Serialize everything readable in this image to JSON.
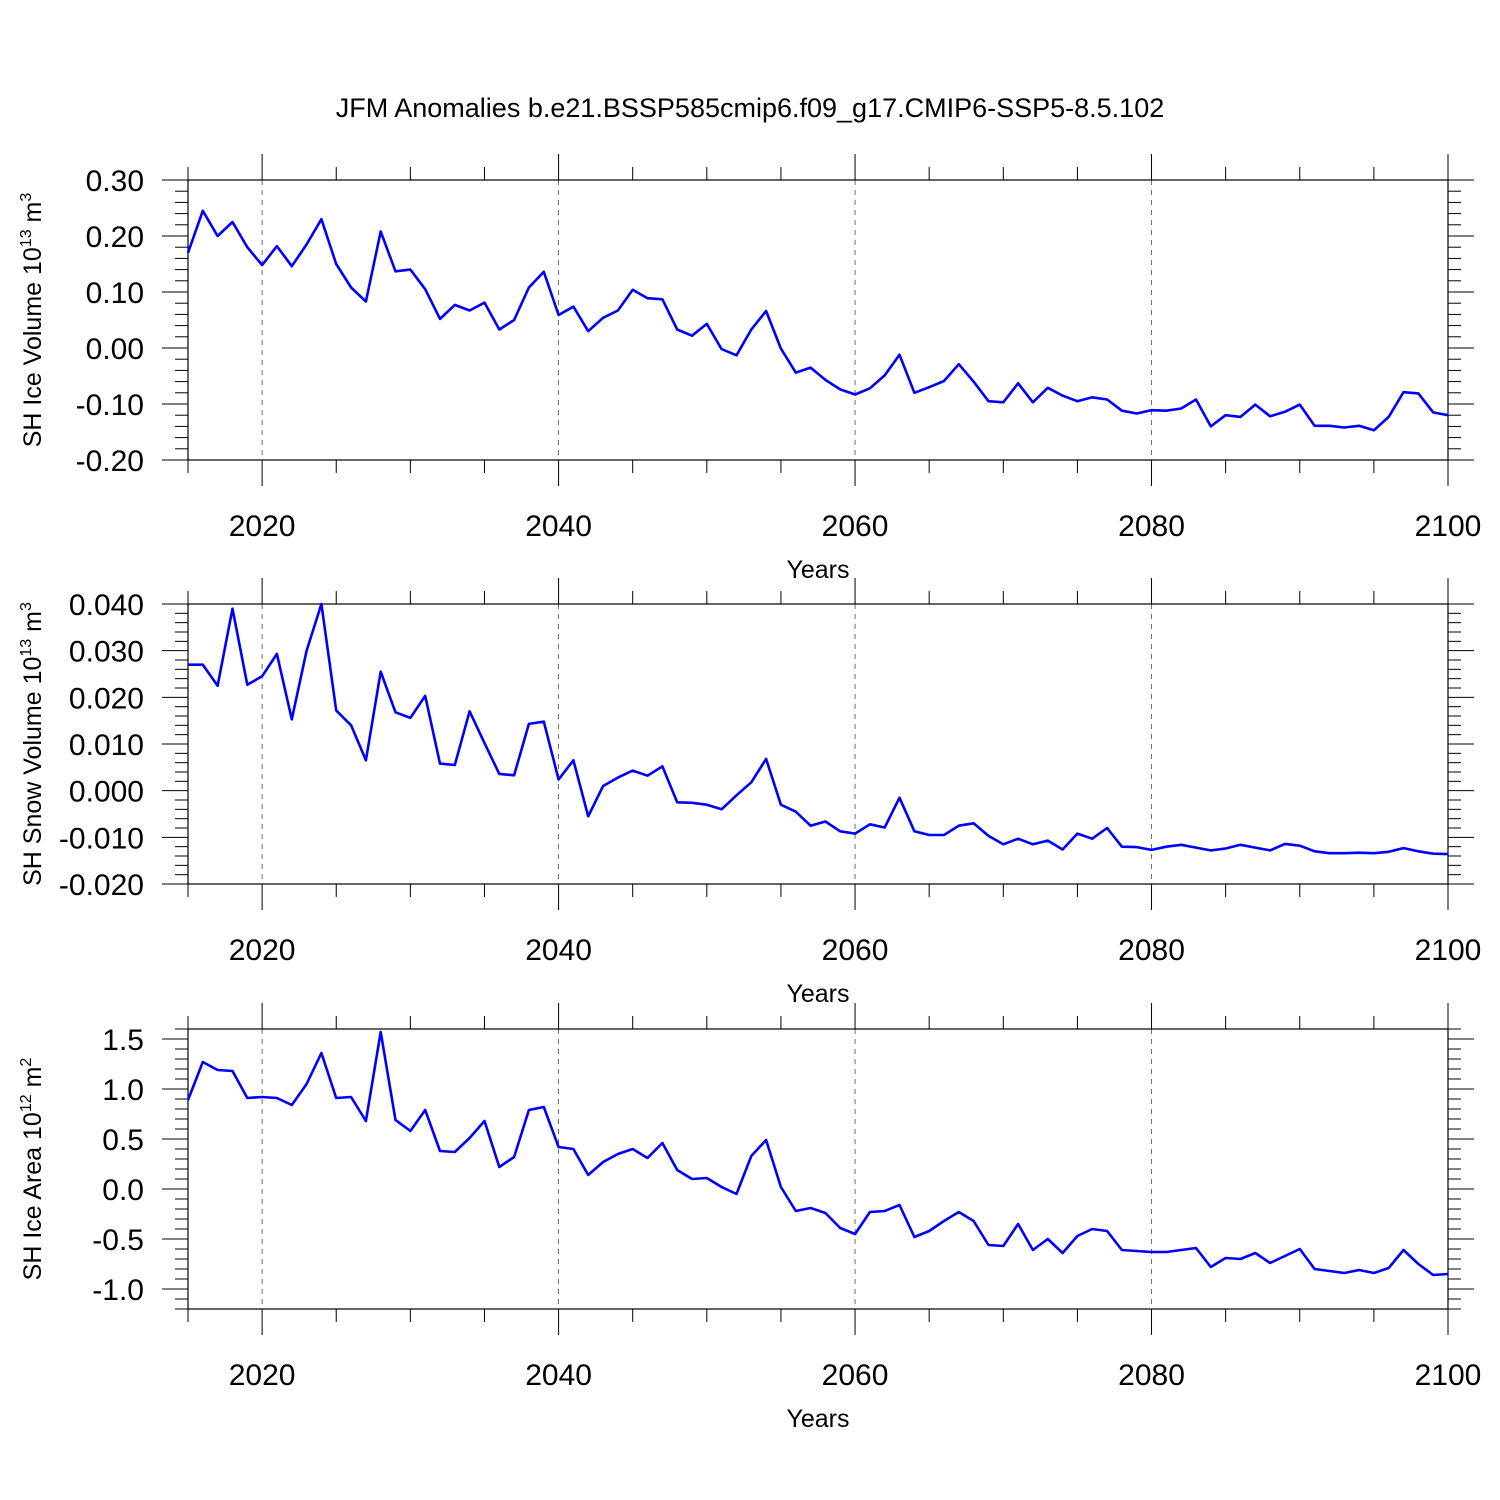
{
  "figure": {
    "title": "JFM Anomalies b.e21.BSSP585cmip6.f09_g17.CMIP6-SSP5-8.5.102"
  },
  "chart_data": [
    {
      "type": "line",
      "title": "",
      "xlabel": "Years",
      "ylabel": "SH Ice Volume 10^13 m^3",
      "ylabel_parts": {
        "base": "SH Ice Volume 10",
        "exp": "13",
        "unit": " m",
        "unit_exp": "3"
      },
      "xlim": [
        2015,
        2100
      ],
      "ylim": [
        -0.2,
        0.3
      ],
      "xticks": [
        2020,
        2040,
        2060,
        2080,
        2100
      ],
      "yticks": [
        -0.2,
        -0.1,
        0.0,
        0.1,
        0.2,
        0.3
      ],
      "ytick_labels": [
        "-0.20",
        "-0.10",
        "0.00",
        "0.10",
        "0.20",
        "0.30"
      ],
      "grid": "dashed vertical at major x ticks",
      "line_color": "#0000ff",
      "x_start": 2015,
      "values": [
        0.17,
        0.245,
        0.2,
        0.225,
        0.18,
        0.148,
        0.182,
        0.146,
        0.185,
        0.23,
        0.15,
        0.108,
        0.083,
        0.208,
        0.137,
        0.14,
        0.105,
        0.052,
        0.077,
        0.067,
        0.081,
        0.033,
        0.05,
        0.108,
        0.136,
        0.059,
        0.074,
        0.03,
        0.054,
        0.067,
        0.104,
        0.089,
        0.087,
        0.033,
        0.022,
        0.043,
        -0.002,
        -0.013,
        0.033,
        0.066,
        -0.001,
        -0.044,
        -0.035,
        -0.057,
        -0.074,
        -0.083,
        -0.072,
        -0.049,
        -0.012,
        -0.08,
        -0.07,
        -0.059,
        -0.029,
        -0.06,
        -0.095,
        -0.097,
        -0.063,
        -0.097,
        -0.071,
        -0.085,
        -0.095,
        -0.088,
        -0.092,
        -0.112,
        -0.117,
        -0.111,
        -0.112,
        -0.108,
        -0.092,
        -0.14,
        -0.12,
        -0.123,
        -0.101,
        -0.122,
        -0.114,
        -0.101,
        -0.139,
        -0.139,
        -0.142,
        -0.139,
        -0.147,
        -0.123,
        -0.079,
        -0.081,
        -0.115,
        -0.12
      ]
    },
    {
      "type": "line",
      "title": "",
      "xlabel": "Years",
      "ylabel": "SH Snow Volume 10^13 m^3",
      "ylabel_parts": {
        "base": "SH Snow Volume 10",
        "exp": "13",
        "unit": " m",
        "unit_exp": "3"
      },
      "xlim": [
        2015,
        2100
      ],
      "ylim": [
        -0.02,
        0.04
      ],
      "xticks": [
        2020,
        2040,
        2060,
        2080,
        2100
      ],
      "yticks": [
        -0.02,
        -0.01,
        0.0,
        0.01,
        0.02,
        0.03,
        0.04
      ],
      "ytick_labels": [
        "-0.020",
        "-0.010",
        "0.000",
        "0.010",
        "0.020",
        "0.030",
        "0.040"
      ],
      "grid": "dashed vertical at major x ticks",
      "line_color": "#0000ff",
      "x_start": 2015,
      "values": [
        0.027,
        0.027,
        0.0225,
        0.039,
        0.0227,
        0.0245,
        0.0293,
        0.0153,
        0.03,
        0.04,
        0.0172,
        0.014,
        0.0065,
        0.0255,
        0.0168,
        0.0156,
        0.0203,
        0.0058,
        0.0055,
        0.017,
        0.0102,
        0.0036,
        0.0033,
        0.0143,
        0.0148,
        0.0024,
        0.0065,
        -0.0055,
        0.001,
        0.0028,
        0.0043,
        0.0032,
        0.0052,
        -0.0025,
        -0.0026,
        -0.003,
        -0.004,
        -0.001,
        0.0018,
        0.0068,
        -0.003,
        -0.0045,
        -0.0075,
        -0.0066,
        -0.0087,
        -0.0092,
        -0.0072,
        -0.0079,
        -0.0015,
        -0.0087,
        -0.0095,
        -0.0095,
        -0.0075,
        -0.007,
        -0.0097,
        -0.0115,
        -0.0103,
        -0.0115,
        -0.0107,
        -0.0126,
        -0.0092,
        -0.0103,
        -0.008,
        -0.012,
        -0.0121,
        -0.0127,
        -0.012,
        -0.0116,
        -0.0122,
        -0.0128,
        -0.0124,
        -0.0116,
        -0.0122,
        -0.0128,
        -0.0114,
        -0.0118,
        -0.013,
        -0.0134,
        -0.0134,
        -0.0133,
        -0.0134,
        -0.0131,
        -0.0123,
        -0.013,
        -0.0135,
        -0.0136
      ]
    },
    {
      "type": "line",
      "title": "",
      "xlabel": "Years",
      "ylabel": "SH Ice Area 10^12 m^2",
      "ylabel_parts": {
        "base": "SH Ice Area 10",
        "exp": "12",
        "unit": " m",
        "unit_exp": "2"
      },
      "xlim": [
        2015,
        2100
      ],
      "ylim": [
        -1.2,
        1.6
      ],
      "xticks": [
        2020,
        2040,
        2060,
        2080,
        2100
      ],
      "yticks": [
        -1.0,
        -0.5,
        0.0,
        0.5,
        1.0,
        1.5
      ],
      "ytick_labels": [
        "-1.0",
        "-0.5",
        "0.0",
        "0.5",
        "1.0",
        "1.5"
      ],
      "grid": "dashed vertical at major x ticks",
      "line_color": "#0000ff",
      "x_start": 2015,
      "values": [
        0.89,
        1.27,
        1.19,
        1.18,
        0.91,
        0.92,
        0.91,
        0.84,
        1.05,
        1.36,
        0.91,
        0.92,
        0.68,
        1.57,
        0.69,
        0.58,
        0.79,
        0.38,
        0.37,
        0.51,
        0.68,
        0.22,
        0.32,
        0.79,
        0.82,
        0.42,
        0.4,
        0.14,
        0.27,
        0.35,
        0.4,
        0.31,
        0.46,
        0.19,
        0.1,
        0.11,
        0.02,
        -0.05,
        0.33,
        0.49,
        0.02,
        -0.22,
        -0.19,
        -0.24,
        -0.39,
        -0.45,
        -0.23,
        -0.22,
        -0.16,
        -0.48,
        -0.42,
        -0.32,
        -0.23,
        -0.32,
        -0.56,
        -0.57,
        -0.35,
        -0.61,
        -0.5,
        -0.64,
        -0.47,
        -0.4,
        -0.42,
        -0.61,
        -0.62,
        -0.63,
        -0.63,
        -0.61,
        -0.59,
        -0.78,
        -0.69,
        -0.7,
        -0.64,
        -0.74,
        -0.67,
        -0.6,
        -0.8,
        -0.82,
        -0.84,
        -0.81,
        -0.84,
        -0.79,
        -0.61,
        -0.75,
        -0.86,
        -0.85
      ]
    }
  ]
}
